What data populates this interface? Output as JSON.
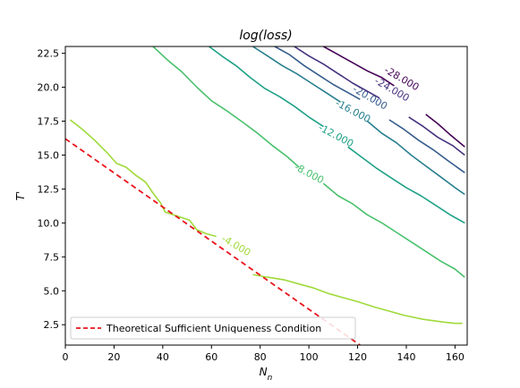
{
  "chart_data": {
    "type": "line",
    "title": "log(loss)",
    "xlabel": "N_n",
    "ylabel": "T'",
    "xlim": [
      0,
      165
    ],
    "ylim": [
      1.0,
      23.0
    ],
    "x_ticks": [
      0,
      20,
      40,
      60,
      80,
      100,
      120,
      140,
      160
    ],
    "y_ticks": [
      2.5,
      5.0,
      7.5,
      10.0,
      12.5,
      15.0,
      17.5,
      20.0,
      22.5
    ],
    "x_tick_labels": [
      "0",
      "20",
      "40",
      "60",
      "80",
      "100",
      "120",
      "140",
      "160"
    ],
    "y_tick_labels": [
      "2.5",
      "5.0",
      "7.5",
      "10.0",
      "12.5",
      "15.0",
      "17.5",
      "20.0",
      "22.5"
    ],
    "grid": false,
    "legend": {
      "placement": "lower-left",
      "entries": [
        {
          "label": "Theoretical Sufficient Uniqueness Condition",
          "color": "#e8141c",
          "dash": true
        }
      ]
    },
    "contours": [
      {
        "level_label": "-4.000",
        "color": "#9fda3a",
        "segments": [
          [
            [
              2,
              17.6
            ],
            [
              7,
              16.9
            ],
            [
              12,
              16.1
            ],
            [
              17,
              15.2
            ],
            [
              21,
              14.4
            ],
            [
              25,
              14.1
            ],
            [
              29,
              13.5
            ],
            [
              33,
              13.0
            ],
            [
              36,
              12.2
            ],
            [
              39,
              11.5
            ],
            [
              41,
              10.8
            ],
            [
              46,
              10.5
            ],
            [
              51,
              10.2
            ],
            [
              54,
              9.5
            ],
            [
              58,
              9.2
            ],
            [
              62,
              9.0
            ]
          ]
        ],
        "label_position": [
          70,
          8.3
        ],
        "label_angle_deg": 30
      },
      {
        "level_label": "-4.000",
        "color": "#9fda3a",
        "segments": [
          [
            [
              77,
              6.2
            ],
            [
              83,
              6.0
            ],
            [
              90,
              5.8
            ],
            [
              96,
              5.5
            ],
            [
              102,
              5.2
            ],
            [
              108,
              4.8
            ],
            [
              114,
              4.5
            ],
            [
              120,
              4.2
            ],
            [
              127,
              3.8
            ],
            [
              133,
              3.5
            ],
            [
              139,
              3.2
            ],
            [
              147,
              2.9
            ],
            [
              155,
              2.7
            ],
            [
              160,
              2.6
            ],
            [
              163,
              2.6
            ]
          ]
        ],
        "label_position": null,
        "label_angle_deg": 0
      },
      {
        "level_label": "-8.000",
        "color": "#4ac16d",
        "segments": [
          [
            [
              36,
              23.0
            ],
            [
              42,
              22.0
            ],
            [
              48,
              21.1
            ],
            [
              54,
              20.0
            ],
            [
              60,
              19.0
            ],
            [
              66,
              18.3
            ],
            [
              73,
              17.4
            ],
            [
              79,
              16.6
            ],
            [
              85,
              15.7
            ],
            [
              91,
              14.9
            ],
            [
              96,
              14.1
            ]
          ],
          [
            [
              106,
              12.9
            ],
            [
              112,
              12.0
            ],
            [
              118,
              11.4
            ],
            [
              124,
              10.6
            ],
            [
              130,
              10.0
            ],
            [
              136,
              9.3
            ],
            [
              142,
              8.6
            ],
            [
              148,
              7.9
            ],
            [
              154,
              7.2
            ],
            [
              160,
              6.6
            ],
            [
              164,
              6.0
            ]
          ]
        ],
        "label_position": [
          100,
          13.6
        ],
        "label_angle_deg": 28
      },
      {
        "level_label": "-12.000",
        "color": "#1fa187",
        "segments": [
          [
            [
              59,
              23.0
            ],
            [
              65,
              22.2
            ],
            [
              70,
              21.6
            ],
            [
              76,
              20.7
            ],
            [
              82,
              19.9
            ],
            [
              88,
              19.3
            ],
            [
              94,
              18.6
            ],
            [
              100,
              17.8
            ],
            [
              106,
              17.1
            ]
          ],
          [
            [
              116,
              15.6
            ],
            [
              122,
              14.8
            ],
            [
              128,
              14.0
            ],
            [
              134,
              13.3
            ],
            [
              140,
              12.6
            ],
            [
              146,
              12.0
            ],
            [
              152,
              11.3
            ],
            [
              158,
              10.6
            ],
            [
              164,
              10.0
            ]
          ]
        ],
        "label_position": [
          111,
          16.4
        ],
        "label_angle_deg": 28
      },
      {
        "level_label": "-16.000",
        "color": "#277f8e",
        "segments": [
          [
            [
              77,
              23.0
            ],
            [
              83,
              22.3
            ],
            [
              89,
              21.6
            ],
            [
              95,
              21.0
            ],
            [
              101,
              20.3
            ],
            [
              107,
              19.6
            ],
            [
              113,
              18.9
            ]
          ],
          [
            [
              124,
              17.5
            ],
            [
              130,
              16.6
            ],
            [
              136,
              15.9
            ],
            [
              142,
              15.0
            ],
            [
              148,
              14.2
            ],
            [
              154,
              13.4
            ],
            [
              160,
              12.6
            ],
            [
              164,
              12.1
            ]
          ]
        ],
        "label_position": [
          118,
          18.2
        ],
        "label_angle_deg": 28
      },
      {
        "level_label": "-20.000",
        "color": "#365c8d",
        "segments": [
          [
            [
              86,
              23.0
            ],
            [
              92,
              22.4
            ],
            [
              98,
              21.6
            ],
            [
              104,
              20.9
            ],
            [
              110,
              20.2
            ],
            [
              116,
              19.6
            ],
            [
              121,
              19.1
            ]
          ],
          [
            [
              133,
              17.6
            ],
            [
              139,
              16.9
            ],
            [
              145,
              16.1
            ],
            [
              151,
              15.4
            ],
            [
              157,
              14.6
            ],
            [
              164,
              13.7
            ]
          ]
        ],
        "label_position": [
          125,
          19.2
        ],
        "label_angle_deg": 30
      },
      {
        "level_label": "-24.000",
        "color": "#46327e",
        "segments": [
          [
            [
              94,
              23.0
            ],
            [
              100,
              22.3
            ],
            [
              106,
              21.7
            ],
            [
              112,
              21.0
            ],
            [
              118,
              20.3
            ],
            [
              124,
              19.7
            ],
            [
              129,
              19.2
            ]
          ],
          [
            [
              141,
              17.8
            ],
            [
              147,
              17.1
            ],
            [
              153,
              16.3
            ],
            [
              159,
              15.7
            ],
            [
              164,
              15.0
            ]
          ]
        ],
        "label_position": [
          134,
          19.8
        ],
        "label_angle_deg": 30
      },
      {
        "level_label": "-28.000",
        "color": "#440154",
        "segments": [
          [
            [
              106,
              23.0
            ],
            [
              112,
              22.4
            ],
            [
              118,
              21.8
            ],
            [
              124,
              21.2
            ],
            [
              130,
              20.7
            ],
            [
              135,
              20.1
            ]
          ],
          [
            [
              148,
              18.0
            ],
            [
              153,
              17.3
            ],
            [
              158,
              16.5
            ],
            [
              164,
              15.6
            ]
          ]
        ],
        "label_position": [
          138,
          20.6
        ],
        "label_angle_deg": 30
      }
    ],
    "condition_line": {
      "name": "Theoretical Sufficient Uniqueness Condition",
      "color": "#e8141c",
      "dash": true,
      "points": [
        [
          0,
          16.2
        ],
        [
          121,
          1.0
        ]
      ]
    }
  }
}
